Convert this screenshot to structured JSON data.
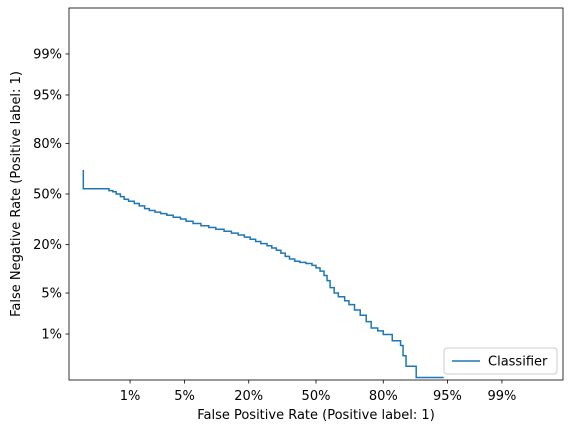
{
  "chart_data": {
    "type": "line",
    "subtype": "det_curve",
    "title": "",
    "xlabel": "False Positive Rate (Positive label: 1)",
    "ylabel": "False Negative Rate (Positive label: 1)",
    "scale": "normal-deviate",
    "xlim": [
      0.001,
      0.999
    ],
    "ylim": [
      0.001,
      0.999
    ],
    "x_ticks": [
      {
        "value": 0.01,
        "label": "1%"
      },
      {
        "value": 0.05,
        "label": "5%"
      },
      {
        "value": 0.2,
        "label": "20%"
      },
      {
        "value": 0.5,
        "label": "50%"
      },
      {
        "value": 0.8,
        "label": "80%"
      },
      {
        "value": 0.95,
        "label": "95%"
      },
      {
        "value": 0.99,
        "label": "99%"
      }
    ],
    "y_ticks": [
      {
        "value": 0.01,
        "label": "1%"
      },
      {
        "value": 0.05,
        "label": "5%"
      },
      {
        "value": 0.2,
        "label": "20%"
      },
      {
        "value": 0.5,
        "label": "50%"
      },
      {
        "value": 0.8,
        "label": "80%"
      },
      {
        "value": 0.95,
        "label": "95%"
      },
      {
        "value": 0.99,
        "label": "99%"
      }
    ],
    "grid": false,
    "legend": {
      "position": "lower-right"
    },
    "series": [
      {
        "name": "Classifier",
        "color": "#1f77b4",
        "points": [
          [
            0.0018,
            0.655
          ],
          [
            0.0018,
            0.535
          ],
          [
            0.0048,
            0.535
          ],
          [
            0.0048,
            0.522
          ],
          [
            0.0055,
            0.522
          ],
          [
            0.0055,
            0.515
          ],
          [
            0.0062,
            0.515
          ],
          [
            0.0062,
            0.5
          ],
          [
            0.0072,
            0.5
          ],
          [
            0.0072,
            0.483
          ],
          [
            0.0082,
            0.483
          ],
          [
            0.0082,
            0.465
          ],
          [
            0.0095,
            0.465
          ],
          [
            0.0095,
            0.452
          ],
          [
            0.0115,
            0.452
          ],
          [
            0.0115,
            0.437
          ],
          [
            0.0135,
            0.437
          ],
          [
            0.0135,
            0.422
          ],
          [
            0.016,
            0.422
          ],
          [
            0.016,
            0.404
          ],
          [
            0.0185,
            0.404
          ],
          [
            0.0185,
            0.392
          ],
          [
            0.022,
            0.392
          ],
          [
            0.022,
            0.382
          ],
          [
            0.026,
            0.382
          ],
          [
            0.026,
            0.372
          ],
          [
            0.031,
            0.372
          ],
          [
            0.031,
            0.362
          ],
          [
            0.037,
            0.362
          ],
          [
            0.037,
            0.35
          ],
          [
            0.045,
            0.35
          ],
          [
            0.045,
            0.339
          ],
          [
            0.052,
            0.339
          ],
          [
            0.052,
            0.325
          ],
          [
            0.062,
            0.325
          ],
          [
            0.062,
            0.312
          ],
          [
            0.075,
            0.312
          ],
          [
            0.075,
            0.299
          ],
          [
            0.09,
            0.299
          ],
          [
            0.09,
            0.289
          ],
          [
            0.105,
            0.289
          ],
          [
            0.105,
            0.279
          ],
          [
            0.125,
            0.279
          ],
          [
            0.125,
            0.268
          ],
          [
            0.145,
            0.268
          ],
          [
            0.145,
            0.258
          ],
          [
            0.165,
            0.258
          ],
          [
            0.165,
            0.248
          ],
          [
            0.185,
            0.248
          ],
          [
            0.185,
            0.237
          ],
          [
            0.205,
            0.237
          ],
          [
            0.205,
            0.226
          ],
          [
            0.225,
            0.226
          ],
          [
            0.225,
            0.215
          ],
          [
            0.245,
            0.215
          ],
          [
            0.245,
            0.205
          ],
          [
            0.27,
            0.205
          ],
          [
            0.27,
            0.195
          ],
          [
            0.29,
            0.195
          ],
          [
            0.29,
            0.185
          ],
          [
            0.31,
            0.185
          ],
          [
            0.31,
            0.175
          ],
          [
            0.33,
            0.175
          ],
          [
            0.33,
            0.163
          ],
          [
            0.35,
            0.163
          ],
          [
            0.35,
            0.15
          ],
          [
            0.37,
            0.15
          ],
          [
            0.37,
            0.14
          ],
          [
            0.395,
            0.14
          ],
          [
            0.395,
            0.132
          ],
          [
            0.42,
            0.132
          ],
          [
            0.42,
            0.128
          ],
          [
            0.45,
            0.128
          ],
          [
            0.45,
            0.124
          ],
          [
            0.48,
            0.124
          ],
          [
            0.48,
            0.118
          ],
          [
            0.5,
            0.118
          ],
          [
            0.5,
            0.11
          ],
          [
            0.52,
            0.11
          ],
          [
            0.52,
            0.1
          ],
          [
            0.54,
            0.1
          ],
          [
            0.54,
            0.088
          ],
          [
            0.555,
            0.088
          ],
          [
            0.555,
            0.075
          ],
          [
            0.57,
            0.075
          ],
          [
            0.57,
            0.06
          ],
          [
            0.59,
            0.06
          ],
          [
            0.59,
            0.05
          ],
          [
            0.61,
            0.05
          ],
          [
            0.61,
            0.044
          ],
          [
            0.64,
            0.044
          ],
          [
            0.64,
            0.038
          ],
          [
            0.66,
            0.038
          ],
          [
            0.66,
            0.033
          ],
          [
            0.685,
            0.033
          ],
          [
            0.685,
            0.027
          ],
          [
            0.71,
            0.027
          ],
          [
            0.71,
            0.022
          ],
          [
            0.735,
            0.022
          ],
          [
            0.735,
            0.017
          ],
          [
            0.755,
            0.017
          ],
          [
            0.755,
            0.013
          ],
          [
            0.78,
            0.013
          ],
          [
            0.78,
            0.0115
          ],
          [
            0.8,
            0.0115
          ],
          [
            0.8,
            0.0098
          ],
          [
            0.83,
            0.0098
          ],
          [
            0.83,
            0.0074
          ],
          [
            0.855,
            0.0074
          ],
          [
            0.855,
            0.0059
          ],
          [
            0.862,
            0.0059
          ],
          [
            0.862,
            0.0036
          ],
          [
            0.87,
            0.0036
          ],
          [
            0.87,
            0.0021
          ],
          [
            0.895,
            0.0021
          ],
          [
            0.895,
            0.00115
          ],
          [
            0.945,
            0.00115
          ]
        ]
      }
    ]
  }
}
